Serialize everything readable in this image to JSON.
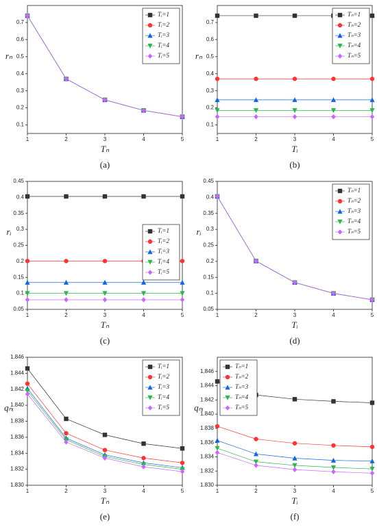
{
  "chart_data": [
    {
      "type": "line",
      "caption": "(a)",
      "x_label": "Tₙ",
      "y_label": "rₙ",
      "x": [
        1,
        2,
        3,
        4,
        5
      ],
      "xlim": [
        1,
        5
      ],
      "xticks": [
        1,
        2,
        3,
        4,
        5
      ],
      "ylim": [
        0.05,
        0.8
      ],
      "yticks": [
        0.1,
        0.2,
        0.3,
        0.4,
        0.5,
        0.6,
        0.7
      ],
      "legend": "upper right",
      "series": [
        {
          "name": "Tᵢ=1",
          "color": "#333333",
          "marker": "square",
          "values": [
            0.74,
            0.37,
            0.247,
            0.185,
            0.148
          ]
        },
        {
          "name": "Tᵢ=2",
          "color": "#ff3333",
          "marker": "circle",
          "values": [
            0.74,
            0.37,
            0.247,
            0.185,
            0.148
          ]
        },
        {
          "name": "Tᵢ=3",
          "color": "#1565e0",
          "marker": "triangle-up",
          "values": [
            0.74,
            0.37,
            0.247,
            0.185,
            0.148
          ]
        },
        {
          "name": "Tᵢ=4",
          "color": "#2db84d",
          "marker": "triangle-down",
          "values": [
            0.74,
            0.37,
            0.247,
            0.185,
            0.148
          ]
        },
        {
          "name": "Tᵢ=5",
          "color": "#cc66ff",
          "marker": "diamond",
          "values": [
            0.74,
            0.37,
            0.247,
            0.185,
            0.148
          ]
        }
      ]
    },
    {
      "type": "line",
      "caption": "(b)",
      "x_label": "Tᵢ",
      "y_label": "rₙ",
      "x": [
        1,
        2,
        3,
        4,
        5
      ],
      "xlim": [
        1,
        5
      ],
      "xticks": [
        1,
        2,
        3,
        4,
        5
      ],
      "ylim": [
        0.05,
        0.8
      ],
      "yticks": [
        0.1,
        0.2,
        0.3,
        0.4,
        0.5,
        0.6,
        0.7
      ],
      "legend": "upper right",
      "series": [
        {
          "name": "Tₙ=1",
          "color": "#333333",
          "marker": "square",
          "values": [
            0.74,
            0.74,
            0.74,
            0.74,
            0.74
          ]
        },
        {
          "name": "Tₙ=2",
          "color": "#ff3333",
          "marker": "circle",
          "values": [
            0.37,
            0.37,
            0.37,
            0.37,
            0.37
          ]
        },
        {
          "name": "Tₙ=3",
          "color": "#1565e0",
          "marker": "triangle-up",
          "values": [
            0.247,
            0.247,
            0.247,
            0.247,
            0.247
          ]
        },
        {
          "name": "Tₙ=4",
          "color": "#2db84d",
          "marker": "triangle-down",
          "values": [
            0.185,
            0.185,
            0.185,
            0.185,
            0.185
          ]
        },
        {
          "name": "Tₙ=5",
          "color": "#cc66ff",
          "marker": "diamond",
          "values": [
            0.148,
            0.148,
            0.148,
            0.148,
            0.148
          ]
        }
      ]
    },
    {
      "type": "line",
      "caption": "(c)",
      "x_label": "Tₙ",
      "y_label": "rᵢ",
      "x": [
        1,
        2,
        3,
        4,
        5
      ],
      "xlim": [
        1,
        5
      ],
      "xticks": [
        1,
        2,
        3,
        4,
        5
      ],
      "ylim": [
        0.05,
        0.45
      ],
      "yticks": [
        0.05,
        0.1,
        0.15,
        0.2,
        0.25,
        0.3,
        0.35,
        0.4,
        0.45
      ],
      "legend": "center right",
      "series": [
        {
          "name": "Tᵢ=1",
          "color": "#333333",
          "marker": "square",
          "values": [
            0.403,
            0.403,
            0.403,
            0.403,
            0.403
          ]
        },
        {
          "name": "Tᵢ=2",
          "color": "#ff3333",
          "marker": "circle",
          "values": [
            0.201,
            0.201,
            0.201,
            0.201,
            0.201
          ]
        },
        {
          "name": "Tᵢ=3",
          "color": "#1565e0",
          "marker": "triangle-up",
          "values": [
            0.134,
            0.134,
            0.134,
            0.134,
            0.134
          ]
        },
        {
          "name": "Tᵢ=4",
          "color": "#2db84d",
          "marker": "triangle-down",
          "values": [
            0.1,
            0.1,
            0.1,
            0.1,
            0.1
          ]
        },
        {
          "name": "Tᵢ=5",
          "color": "#cc66ff",
          "marker": "diamond",
          "values": [
            0.08,
            0.08,
            0.08,
            0.08,
            0.08
          ]
        }
      ]
    },
    {
      "type": "line",
      "caption": "(d)",
      "x_label": "Tᵢ",
      "y_label": "rᵢ",
      "x": [
        1,
        2,
        3,
        4,
        5
      ],
      "xlim": [
        1,
        5
      ],
      "xticks": [
        1,
        2,
        3,
        4,
        5
      ],
      "ylim": [
        0.05,
        0.45
      ],
      "yticks": [
        0.05,
        0.1,
        0.15,
        0.2,
        0.25,
        0.3,
        0.35,
        0.4,
        0.45
      ],
      "legend": "upper right",
      "series": [
        {
          "name": "Tₙ=1",
          "color": "#333333",
          "marker": "square",
          "values": [
            0.403,
            0.201,
            0.134,
            0.1,
            0.08
          ]
        },
        {
          "name": "Tₙ=2",
          "color": "#ff3333",
          "marker": "circle",
          "values": [
            0.403,
            0.201,
            0.134,
            0.1,
            0.08
          ]
        },
        {
          "name": "Tₙ=3",
          "color": "#1565e0",
          "marker": "triangle-up",
          "values": [
            0.403,
            0.201,
            0.134,
            0.1,
            0.08
          ]
        },
        {
          "name": "Tₙ=4",
          "color": "#2db84d",
          "marker": "triangle-down",
          "values": [
            0.403,
            0.201,
            0.134,
            0.1,
            0.08
          ]
        },
        {
          "name": "Tₙ=5",
          "color": "#cc66ff",
          "marker": "diamond",
          "values": [
            0.403,
            0.201,
            0.134,
            0.1,
            0.08
          ]
        }
      ]
    },
    {
      "type": "line",
      "caption": "(e)",
      "x_label": "Tₙ",
      "y_label": "qₙᵢ",
      "x": [
        1,
        2,
        3,
        4,
        5
      ],
      "xlim": [
        1,
        5
      ],
      "xticks": [
        1,
        2,
        3,
        4,
        5
      ],
      "ylim": [
        1.83,
        1.846
      ],
      "yticks": [
        {
          "value": 1.83,
          "label": "1.830"
        },
        1.832,
        1.834,
        1.836,
        1.838,
        {
          "value": 1.84,
          "label": "1.840"
        },
        1.842,
        1.844,
        1.846
      ],
      "legend": "upper right",
      "series": [
        {
          "name": "Tᵢ=1",
          "color": "#333333",
          "marker": "square",
          "values": [
            1.8446,
            1.8383,
            1.8363,
            1.8352,
            1.8346
          ]
        },
        {
          "name": "Tᵢ=2",
          "color": "#ff3333",
          "marker": "circle",
          "values": [
            1.8427,
            1.8365,
            1.8344,
            1.8334,
            1.8328
          ]
        },
        {
          "name": "Tᵢ=3",
          "color": "#1565e0",
          "marker": "triangle-up",
          "values": [
            1.8421,
            1.8359,
            1.8338,
            1.8328,
            1.8322
          ]
        },
        {
          "name": "Tᵢ=4",
          "color": "#2db84d",
          "marker": "triangle-down",
          "values": [
            1.8418,
            1.8357,
            1.8336,
            1.8326,
            1.832
          ]
        },
        {
          "name": "Tᵢ=5",
          "color": "#cc66ff",
          "marker": "diamond",
          "values": [
            1.8414,
            1.8354,
            1.8334,
            1.8323,
            1.8317
          ]
        }
      ]
    },
    {
      "type": "line",
      "caption": "(f)",
      "x_label": "Tᵢ",
      "y_label": "qₙᵢ",
      "x": [
        1,
        2,
        3,
        4,
        5
      ],
      "xlim": [
        1,
        5
      ],
      "xticks": [
        1,
        2,
        3,
        4,
        5
      ],
      "ylim": [
        1.83,
        1.848
      ],
      "yticks": [
        {
          "value": 1.83,
          "label": "1.830"
        },
        1.832,
        1.834,
        1.836,
        1.838,
        {
          "value": 1.84,
          "label": "1.840"
        },
        1.842,
        1.844,
        1.846
      ],
      "legend": "upper left",
      "series": [
        {
          "name": "Tₙ=1",
          "color": "#333333",
          "marker": "square",
          "values": [
            1.8446,
            1.8427,
            1.8421,
            1.8418,
            1.8416
          ]
        },
        {
          "name": "Tₙ=2",
          "color": "#ff3333",
          "marker": "circle",
          "values": [
            1.8383,
            1.8365,
            1.8359,
            1.8356,
            1.8354
          ]
        },
        {
          "name": "Tₙ=3",
          "color": "#1565e0",
          "marker": "triangle-up",
          "values": [
            1.8363,
            1.8344,
            1.8338,
            1.8335,
            1.8334
          ]
        },
        {
          "name": "Tₙ=4",
          "color": "#2db84d",
          "marker": "triangle-down",
          "values": [
            1.8352,
            1.8333,
            1.8328,
            1.8325,
            1.8323
          ]
        },
        {
          "name": "Tₙ=5",
          "color": "#cc66ff",
          "marker": "diamond",
          "values": [
            1.8346,
            1.8328,
            1.8322,
            1.8319,
            1.8317
          ]
        }
      ]
    }
  ]
}
